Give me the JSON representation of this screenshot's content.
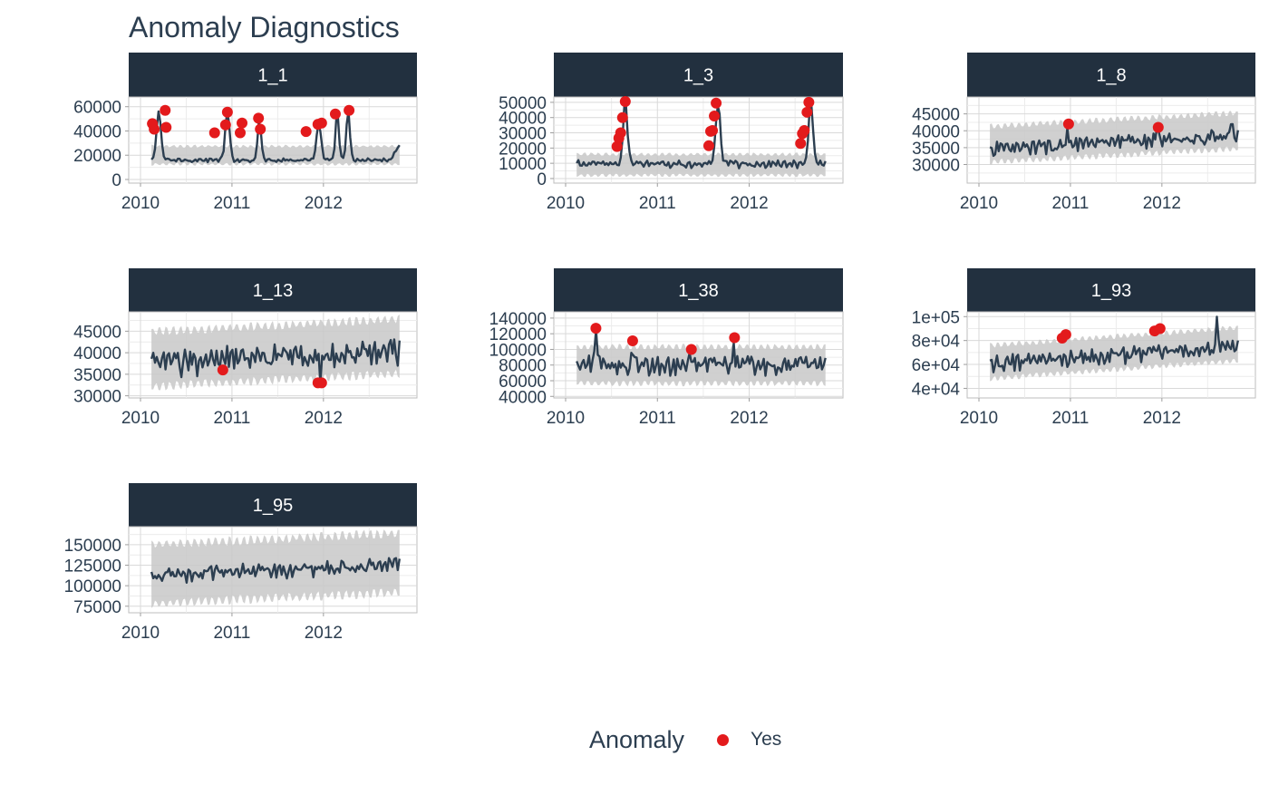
{
  "colors": {
    "line": "#2c3e50",
    "band": "#c8c8c8",
    "anomaly": "#e31a1c",
    "strip": "#22303f",
    "grid": "#d9d9d9"
  },
  "chart_data": {
    "type": "line",
    "title": "Anomaly Diagnostics",
    "legend": {
      "title": "Anomaly",
      "entries": [
        {
          "label": "Yes",
          "color": "#e31a1c"
        }
      ],
      "position": "bottom"
    },
    "x_ticks": [
      2010,
      2011,
      2012
    ],
    "xlim": [
      2010,
      2012.85
    ],
    "panels": [
      {
        "name": "1_1",
        "ylim": [
          -3000,
          68000
        ],
        "y_ticks": [
          0,
          20000,
          40000,
          60000
        ],
        "y_labels": [
          "0",
          "20000",
          "40000",
          "60000"
        ],
        "center": 20000,
        "amplitude": 7000,
        "seasonal_weeks": [
          3,
          4
        ],
        "base_series": {
          "start": 2010.12,
          "end": 2012.83,
          "level": 16000,
          "noise": 1200
        },
        "bumps": [
          {
            "x": 2010.2,
            "y": 56500,
            "w": 0.05
          },
          {
            "x": 2010.95,
            "y": 55500,
            "w": 0.05
          },
          {
            "x": 2011.3,
            "y": 50000,
            "w": 0.04
          },
          {
            "x": 2011.95,
            "y": 46500,
            "w": 0.05
          },
          {
            "x": 2012.15,
            "y": 54000,
            "w": 0.04
          },
          {
            "x": 2012.27,
            "y": 57000,
            "w": 0.04
          },
          {
            "x": 2012.83,
            "y": 27000,
            "w": 0.09
          }
        ],
        "anomalies": [
          {
            "x": 2010.13,
            "y": 46000
          },
          {
            "x": 2010.15,
            "y": 41500
          },
          {
            "x": 2010.27,
            "y": 57000
          },
          {
            "x": 2010.28,
            "y": 43000
          },
          {
            "x": 2010.81,
            "y": 38500
          },
          {
            "x": 2010.93,
            "y": 45000
          },
          {
            "x": 2010.95,
            "y": 55500
          },
          {
            "x": 2011.09,
            "y": 38500
          },
          {
            "x": 2011.11,
            "y": 46500
          },
          {
            "x": 2011.29,
            "y": 50500
          },
          {
            "x": 2011.31,
            "y": 41500
          },
          {
            "x": 2011.81,
            "y": 39500
          },
          {
            "x": 2011.94,
            "y": 45500
          },
          {
            "x": 2011.98,
            "y": 46500
          },
          {
            "x": 2012.13,
            "y": 54000
          },
          {
            "x": 2012.28,
            "y": 57000
          }
        ]
      },
      {
        "name": "1_3",
        "ylim": [
          -3000,
          53500
        ],
        "y_ticks": [
          0,
          10000,
          20000,
          30000,
          40000,
          50000
        ],
        "y_labels": [
          "0",
          "10000",
          "20000",
          "30000",
          "40000",
          "50000"
        ],
        "center": 9000,
        "amplitude": 6500,
        "seasonal_weeks": [
          4,
          4
        ],
        "base_series": {
          "start": 2010.12,
          "end": 2012.83,
          "level": 9500,
          "noise": 1800
        },
        "bumps": [
          {
            "x": 2010.65,
            "y": 50000,
            "w": 0.05
          },
          {
            "x": 2011.66,
            "y": 50000,
            "w": 0.05
          },
          {
            "x": 2012.67,
            "y": 50000,
            "w": 0.05
          }
        ],
        "anomalies": [
          {
            "x": 2010.56,
            "y": 21000
          },
          {
            "x": 2010.58,
            "y": 26500
          },
          {
            "x": 2010.6,
            "y": 30000
          },
          {
            "x": 2010.62,
            "y": 40000
          },
          {
            "x": 2010.65,
            "y": 50500
          },
          {
            "x": 2011.56,
            "y": 21500
          },
          {
            "x": 2011.58,
            "y": 31000
          },
          {
            "x": 2011.6,
            "y": 31500
          },
          {
            "x": 2011.62,
            "y": 41000
          },
          {
            "x": 2011.64,
            "y": 49500
          },
          {
            "x": 2012.56,
            "y": 23000
          },
          {
            "x": 2012.58,
            "y": 29500
          },
          {
            "x": 2012.6,
            "y": 31500
          },
          {
            "x": 2012.63,
            "y": 43500
          },
          {
            "x": 2012.65,
            "y": 50000
          }
        ]
      },
      {
        "name": "1_8",
        "ylim": [
          24500,
          50000
        ],
        "y_ticks": [
          30000,
          35000,
          40000,
          45000
        ],
        "y_labels": [
          "30000",
          "35000",
          "40000",
          "45000"
        ],
        "center": 36000,
        "amplitude": 5000,
        "seasonal_weeks": [
          3,
          3
        ],
        "base_series": {
          "start": 2010.12,
          "end": 2012.83,
          "level": 34500,
          "noise": 1600
        },
        "trend_end": 38500,
        "bumps": [
          {
            "x": 2010.97,
            "y": 42000,
            "w": 0.02
          },
          {
            "x": 2011.95,
            "y": 41000,
            "w": 0.02
          },
          {
            "x": 2012.76,
            "y": 43000,
            "w": 0.02
          }
        ],
        "anomalies": [
          {
            "x": 2010.98,
            "y": 42000
          },
          {
            "x": 2011.96,
            "y": 41000
          }
        ]
      },
      {
        "name": "1_13",
        "ylim": [
          29500,
          49500
        ],
        "y_ticks": [
          30000,
          35000,
          40000,
          45000
        ],
        "y_labels": [
          "30000",
          "35000",
          "40000",
          "45000"
        ],
        "center": 38500,
        "amplitude": 6000,
        "seasonal_weeks": [
          3,
          3
        ],
        "base_series": {
          "start": 2010.12,
          "end": 2012.83,
          "level": 37500,
          "noise": 2300
        },
        "trend_end": 40500,
        "bumps": [
          {
            "x": 2011.97,
            "y": 33000,
            "w": 0.02
          }
        ],
        "anomalies": [
          {
            "x": 2010.9,
            "y": 36000
          },
          {
            "x": 2011.94,
            "y": 33000
          },
          {
            "x": 2011.98,
            "y": 33000
          }
        ]
      },
      {
        "name": "1_38",
        "ylim": [
          38000,
          148000
        ],
        "y_ticks": [
          40000,
          60000,
          80000,
          100000,
          120000,
          140000
        ],
        "y_labels": [
          "40000",
          "60000",
          "80000",
          "100000",
          "120000",
          "140000"
        ],
        "center": 80000,
        "amplitude": 22000,
        "seasonal_weeks": [
          3,
          3
        ],
        "base_series": {
          "start": 2010.12,
          "end": 2012.83,
          "level": 80000,
          "noise": 9000
        },
        "bumps": [
          {
            "x": 2010.33,
            "y": 127000,
            "w": 0.02
          },
          {
            "x": 2010.73,
            "y": 111000,
            "w": 0.02
          },
          {
            "x": 2011.36,
            "y": 100000,
            "w": 0.02
          },
          {
            "x": 2011.83,
            "y": 115000,
            "w": 0.02
          }
        ],
        "anomalies": [
          {
            "x": 2010.33,
            "y": 127000
          },
          {
            "x": 2010.73,
            "y": 111000
          },
          {
            "x": 2011.37,
            "y": 100000
          },
          {
            "x": 2011.84,
            "y": 115000
          }
        ]
      },
      {
        "name": "1_93",
        "ylim": [
          32000,
          104000
        ],
        "y_ticks": [
          40000,
          60000,
          80000,
          100000
        ],
        "y_labels": [
          "4e+04",
          "6e+04",
          "8e+04",
          "1e+05"
        ],
        "center": 62000,
        "amplitude": 13000,
        "seasonal_weeks": [
          3,
          3
        ],
        "base_series": {
          "start": 2010.12,
          "end": 2012.83,
          "level": 60000,
          "noise": 5000
        },
        "trend_end": 75000,
        "bumps": [
          {
            "x": 2012.6,
            "y": 98000,
            "w": 0.02
          }
        ],
        "anomalies": [
          {
            "x": 2010.91,
            "y": 82000
          },
          {
            "x": 2010.95,
            "y": 85000
          },
          {
            "x": 2011.92,
            "y": 88000
          },
          {
            "x": 2011.98,
            "y": 90000
          }
        ]
      },
      {
        "name": "1_95",
        "ylim": [
          67000,
          172000
        ],
        "y_ticks": [
          75000,
          100000,
          125000,
          150000
        ],
        "y_labels": [
          "75000",
          "100000",
          "125000",
          "150000"
        ],
        "center": 114000,
        "amplitude": 34000,
        "seasonal_weeks": [
          3,
          3
        ],
        "base_series": {
          "start": 2010.12,
          "end": 2012.83,
          "level": 112000,
          "noise": 7000
        },
        "trend_end": 126000,
        "bumps": [],
        "anomalies": []
      }
    ]
  }
}
